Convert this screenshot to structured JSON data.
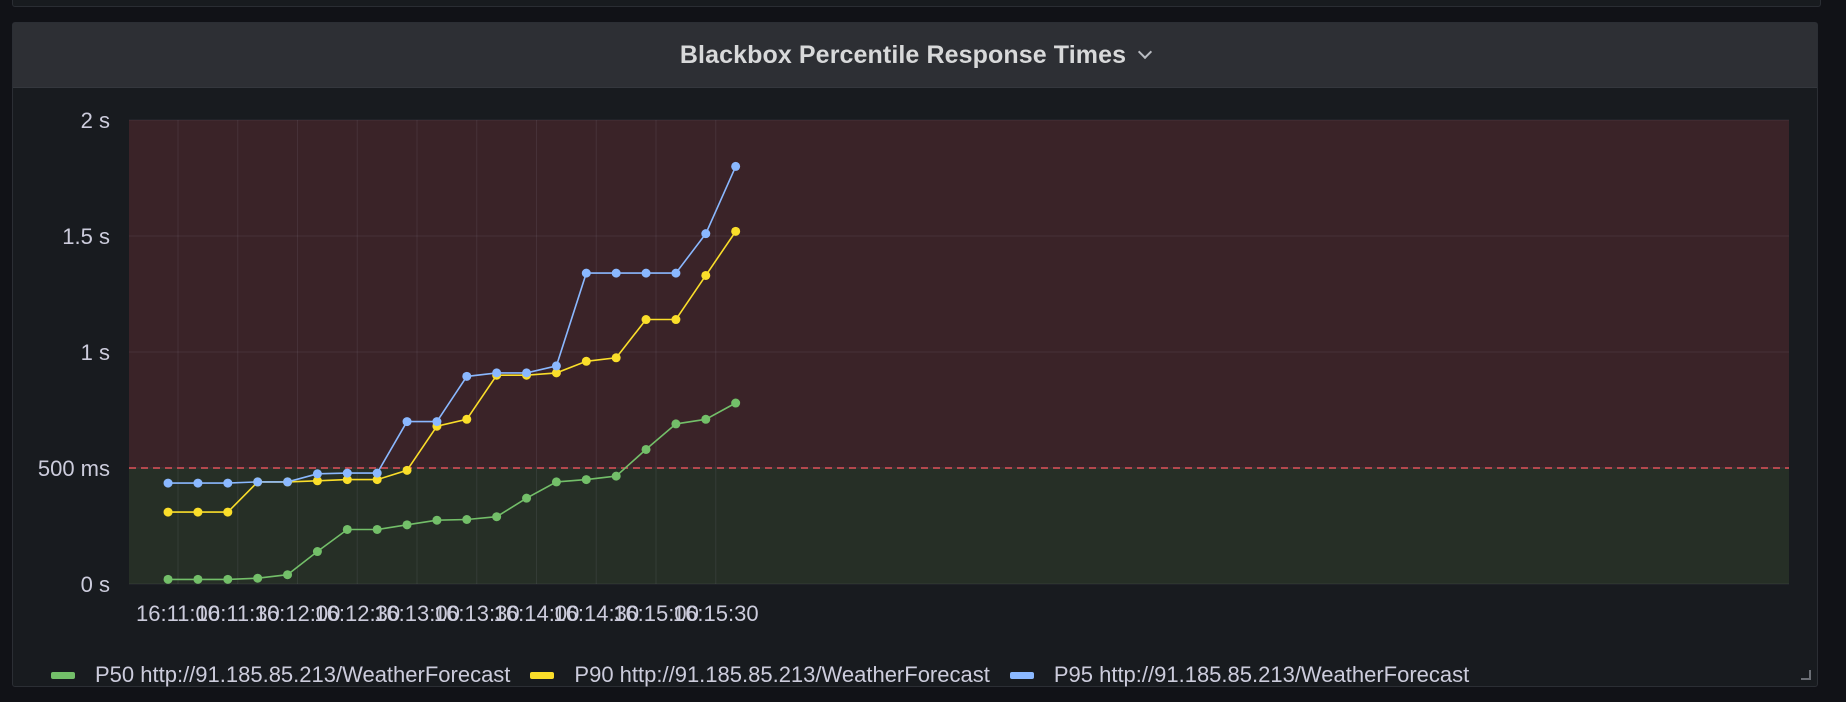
{
  "panel": {
    "title": "Blackbox Percentile Response Times"
  },
  "chart_data": {
    "type": "line",
    "title": "Blackbox Percentile Response Times",
    "x": [
      "16:10:55",
      "16:11:10",
      "16:11:25",
      "16:11:40",
      "16:11:55",
      "16:12:10",
      "16:12:25",
      "16:12:40",
      "16:12:55",
      "16:13:10",
      "16:13:25",
      "16:13:40",
      "16:13:55",
      "16:14:10",
      "16:14:25",
      "16:14:40",
      "16:14:55",
      "16:15:10",
      "16:15:25",
      "16:15:40"
    ],
    "x_ticks": [
      "16:11:00",
      "16:11:30",
      "16:12:00",
      "16:12:30",
      "16:13:00",
      "16:13:30",
      "16:14:00",
      "16:14:30",
      "16:15:00",
      "16:15:30"
    ],
    "y_ticks": [
      {
        "value": 0,
        "label": "0 s"
      },
      {
        "value": 0.5,
        "label": "500 ms"
      },
      {
        "value": 1,
        "label": "1 s"
      },
      {
        "value": 1.5,
        "label": "1.5 s"
      },
      {
        "value": 2,
        "label": "2 s"
      }
    ],
    "ylim": [
      0,
      2
    ],
    "threshold": {
      "value": 0.5,
      "above_color": "#3a2328",
      "below_color": "#262f26",
      "line_color": "#e0535b"
    },
    "grid": true,
    "legend_position": "bottom-left",
    "series": [
      {
        "name": "P50 http://91.185.85.213/WeatherForecast",
        "color": "#73bf69",
        "values": [
          0.02,
          0.02,
          0.02,
          0.025,
          0.04,
          0.14,
          0.235,
          0.235,
          0.255,
          0.275,
          0.278,
          0.29,
          0.37,
          0.44,
          0.45,
          0.465,
          0.58,
          0.69,
          0.71,
          0.78
        ]
      },
      {
        "name": "P90 http://91.185.85.213/WeatherForecast",
        "color": "#fade2a",
        "values": [
          0.31,
          0.31,
          0.31,
          0.44,
          0.44,
          0.445,
          0.45,
          0.45,
          0.49,
          0.68,
          0.71,
          0.9,
          0.9,
          0.91,
          0.96,
          0.975,
          1.14,
          1.14,
          1.33,
          1.52
        ]
      },
      {
        "name": "P95 http://91.185.85.213/WeatherForecast",
        "color": "#8ab8ff",
        "values": [
          0.435,
          0.435,
          0.435,
          0.44,
          0.44,
          0.475,
          0.478,
          0.478,
          0.7,
          0.7,
          0.895,
          0.91,
          0.91,
          0.94,
          1.34,
          1.34,
          1.34,
          1.34,
          1.51,
          1.8
        ]
      }
    ]
  }
}
